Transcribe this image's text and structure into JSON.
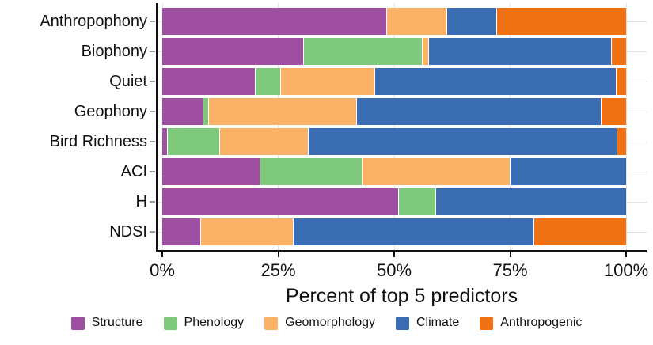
{
  "chart_data": {
    "type": "bar",
    "orientation": "horizontal",
    "stacked": true,
    "unit": "percent",
    "xlabel": "Percent of top 5 predictors",
    "xlim": [
      0,
      100
    ],
    "x_ticks": [
      {
        "value": 0,
        "label": "0%"
      },
      {
        "value": 25,
        "label": "25%"
      },
      {
        "value": 50,
        "label": "50%"
      },
      {
        "value": 75,
        "label": "75%"
      },
      {
        "value": 100,
        "label": "100%"
      }
    ],
    "grid": true,
    "legend_position": "bottom",
    "categories": [
      "Anthropophony",
      "Biophony",
      "Quiet",
      "Geophony",
      "Bird Richness",
      "ACI",
      "H",
      "NDSI"
    ],
    "series": [
      {
        "name": "Structure",
        "color": "#9e4fa1",
        "values": [
          48.3,
          30.4,
          20.0,
          8.7,
          1.0,
          21.0,
          50.9,
          8.2
        ]
      },
      {
        "name": "Phenology",
        "color": "#7ec97b",
        "values": [
          0,
          25.6,
          5.5,
          1.2,
          11.3,
          22.0,
          8.0,
          0
        ]
      },
      {
        "name": "Geomorphology",
        "color": "#fbb266",
        "values": [
          13.0,
          1.4,
          20.3,
          31.9,
          19.1,
          31.9,
          0,
          20.0
        ]
      },
      {
        "name": "Climate",
        "color": "#3a6cb3",
        "values": [
          10.8,
          39.4,
          52.0,
          52.7,
          66.6,
          25.1,
          41.1,
          51.9
        ]
      },
      {
        "name": "Anthropogenic",
        "color": "#ef7112",
        "values": [
          27.9,
          3.2,
          2.2,
          5.5,
          2.0,
          0,
          0,
          19.9
        ]
      }
    ]
  }
}
